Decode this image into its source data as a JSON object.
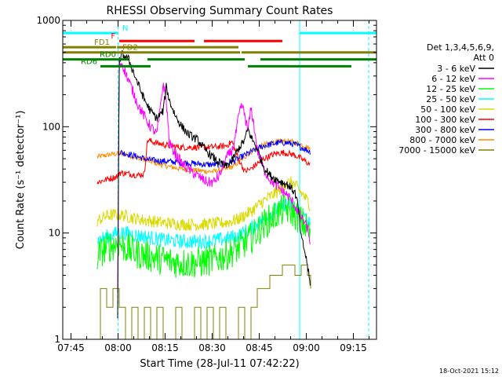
{
  "chart_data": {
    "type": "line",
    "title": "RHESSI Observing Summary Count Rates",
    "xlabel": "Start Time (28-Jul-11 07:42:22)",
    "ylabel": "Count Rate (s⁻¹ detector⁻¹)",
    "x_units": "minutes after 07:42:22",
    "xlim": [
      0,
      100
    ],
    "ylim": [
      1,
      1000
    ],
    "yscale": "log",
    "x_ticks": [
      {
        "value": 2.63,
        "label": "07:45"
      },
      {
        "value": 17.63,
        "label": "08:00"
      },
      {
        "value": 32.63,
        "label": "08:15"
      },
      {
        "value": 47.63,
        "label": "08:30"
      },
      {
        "value": 62.63,
        "label": "08:45"
      },
      {
        "value": 77.63,
        "label": "09:00"
      },
      {
        "value": 92.63,
        "label": "09:15"
      }
    ],
    "y_ticks": [
      {
        "value": 1,
        "label": "1"
      },
      {
        "value": 10,
        "label": "10"
      },
      {
        "value": 100,
        "label": "100"
      },
      {
        "value": 1000,
        "label": "1000"
      }
    ],
    "legend_title": [
      "Det 1,3,4,5,6,9,",
      "Att 0"
    ],
    "legend_position": "right",
    "date_stamp": "18-Oct-2021 15:12",
    "series": [
      {
        "name": "3 - 6 keV",
        "color": "#000000",
        "noise": 0.04,
        "points": [
          [
            17.5,
            1.5
          ],
          [
            18,
            420
          ],
          [
            19,
            480
          ],
          [
            21,
            430
          ],
          [
            23,
            300
          ],
          [
            26,
            180
          ],
          [
            28,
            140
          ],
          [
            30,
            120
          ],
          [
            32,
            140
          ],
          [
            33,
            240
          ],
          [
            34,
            175
          ],
          [
            36,
            125
          ],
          [
            38,
            100
          ],
          [
            40,
            85
          ],
          [
            43,
            75
          ],
          [
            46,
            58
          ],
          [
            49,
            48
          ],
          [
            52,
            42
          ],
          [
            54,
            48
          ],
          [
            56,
            62
          ],
          [
            58,
            75
          ],
          [
            59,
            95
          ],
          [
            60,
            80
          ],
          [
            62,
            62
          ],
          [
            64,
            42
          ],
          [
            66,
            35
          ],
          [
            68,
            32
          ],
          [
            70,
            30
          ],
          [
            72,
            28
          ],
          [
            74,
            24
          ],
          [
            75,
            18
          ],
          [
            76,
            9
          ],
          [
            77,
            7
          ],
          [
            78,
            5
          ],
          [
            79,
            3
          ]
        ]
      },
      {
        "name": "6 - 12 keV",
        "color": "#ff00ff",
        "noise": 0.05,
        "points": [
          [
            17.5,
            2.5
          ],
          [
            18,
            400
          ],
          [
            19,
            390
          ],
          [
            20,
            320
          ],
          [
            22,
            230
          ],
          [
            24,
            160
          ],
          [
            26,
            125
          ],
          [
            28,
            100
          ],
          [
            30,
            85
          ],
          [
            31,
            140
          ],
          [
            32,
            260
          ],
          [
            33,
            175
          ],
          [
            34,
            70
          ],
          [
            36,
            55
          ],
          [
            38,
            45
          ],
          [
            40,
            40
          ],
          [
            42,
            36
          ],
          [
            44,
            33
          ],
          [
            46,
            30
          ],
          [
            48,
            30
          ],
          [
            50,
            35
          ],
          [
            52,
            50
          ],
          [
            54,
            60
          ],
          [
            55,
            80
          ],
          [
            56,
            120
          ],
          [
            57,
            160
          ],
          [
            58,
            130
          ],
          [
            59,
            90
          ],
          [
            60,
            150
          ],
          [
            61,
            100
          ],
          [
            62,
            60
          ],
          [
            64,
            40
          ],
          [
            66,
            32
          ],
          [
            68,
            28
          ],
          [
            70,
            25
          ],
          [
            72,
            22
          ],
          [
            74,
            18
          ],
          [
            76,
            14
          ],
          [
            78,
            11
          ],
          [
            79,
            8
          ]
        ]
      },
      {
        "name": "12 - 25 keV",
        "color": "#00ff00",
        "noise": 0.15,
        "points": [
          [
            11,
            6
          ],
          [
            13,
            7
          ],
          [
            15,
            7.5
          ],
          [
            17.5,
            8
          ],
          [
            18,
            8
          ],
          [
            20,
            7.2
          ],
          [
            24,
            6.4
          ],
          [
            28,
            6
          ],
          [
            32,
            5.6
          ],
          [
            36,
            5.3
          ],
          [
            40,
            5.2
          ],
          [
            44,
            5.3
          ],
          [
            48,
            5.6
          ],
          [
            52,
            6.2
          ],
          [
            56,
            7.2
          ],
          [
            60,
            9
          ],
          [
            64,
            12
          ],
          [
            68,
            15
          ],
          [
            71,
            17
          ],
          [
            73,
            16
          ],
          [
            75,
            14
          ],
          [
            77,
            12
          ],
          [
            79,
            10
          ]
        ]
      },
      {
        "name": "25 - 50 keV",
        "color": "#00ffff",
        "noise": 0.07,
        "points": [
          [
            11,
            8.5
          ],
          [
            15,
            9.5
          ],
          [
            17.5,
            10
          ],
          [
            20,
            10
          ],
          [
            24,
            9.5
          ],
          [
            28,
            9
          ],
          [
            32,
            8.6
          ],
          [
            36,
            8.4
          ],
          [
            40,
            8.3
          ],
          [
            44,
            8.3
          ],
          [
            48,
            8.5
          ],
          [
            52,
            8.8
          ],
          [
            56,
            9.5
          ],
          [
            60,
            11
          ],
          [
            64,
            13.5
          ],
          [
            68,
            16.5
          ],
          [
            71,
            19
          ],
          [
            73,
            18
          ],
          [
            75,
            16
          ],
          [
            77,
            14
          ],
          [
            79,
            12
          ]
        ]
      },
      {
        "name": "50 - 100 keV",
        "color": "#dada00",
        "noise": 0.06,
        "points": [
          [
            11,
            13
          ],
          [
            14,
            14.5
          ],
          [
            17.5,
            15
          ],
          [
            20,
            14.5
          ],
          [
            24,
            13.5
          ],
          [
            28,
            13
          ],
          [
            32,
            12.5
          ],
          [
            36,
            12.2
          ],
          [
            40,
            12
          ],
          [
            44,
            12
          ],
          [
            48,
            12.2
          ],
          [
            52,
            12.5
          ],
          [
            56,
            13.5
          ],
          [
            60,
            16
          ],
          [
            64,
            20
          ],
          [
            68,
            24
          ],
          [
            71,
            29
          ],
          [
            73,
            30
          ],
          [
            75,
            26
          ],
          [
            77,
            22
          ],
          [
            79,
            18
          ]
        ]
      },
      {
        "name": "100 - 300 keV",
        "color": "#ff0000",
        "noise": 0.03,
        "points": [
          [
            11,
            30
          ],
          [
            14,
            32
          ],
          [
            17.5,
            34
          ],
          [
            18,
            37
          ],
          [
            21,
            36
          ],
          [
            24,
            35
          ],
          [
            26,
            36
          ],
          [
            27,
            75
          ],
          [
            30,
            70
          ],
          [
            34,
            66
          ],
          [
            38,
            64
          ],
          [
            42,
            64
          ],
          [
            46,
            64
          ],
          [
            50,
            65
          ],
          [
            52,
            66
          ],
          [
            54,
            72
          ],
          [
            56,
            50
          ],
          [
            58,
            38
          ],
          [
            60,
            40
          ],
          [
            62,
            45
          ],
          [
            64,
            50
          ],
          [
            66,
            53
          ],
          [
            68,
            56
          ],
          [
            70,
            57
          ],
          [
            72,
            56
          ],
          [
            74,
            54
          ],
          [
            76,
            50
          ],
          [
            78,
            46
          ],
          [
            79,
            43
          ]
        ]
      },
      {
        "name": "300 - 800 keV",
        "color": "#0000ff",
        "noise": 0.03,
        "points": [
          [
            18,
            58
          ],
          [
            21,
            55
          ],
          [
            24,
            52
          ],
          [
            26,
            50
          ],
          [
            27,
            49
          ],
          [
            30,
            48
          ],
          [
            34,
            47
          ],
          [
            38,
            46
          ],
          [
            42,
            45
          ],
          [
            46,
            44
          ],
          [
            50,
            44
          ],
          [
            52,
            45
          ],
          [
            54,
            47
          ],
          [
            56,
            50
          ],
          [
            58,
            54
          ],
          [
            60,
            58
          ],
          [
            62,
            62
          ],
          [
            64,
            66
          ],
          [
            66,
            68
          ],
          [
            68,
            70
          ],
          [
            70,
            71
          ],
          [
            72,
            70
          ],
          [
            74,
            68
          ],
          [
            76,
            64
          ],
          [
            78,
            60
          ],
          [
            79,
            58
          ]
        ]
      },
      {
        "name": "800 - 7000 keV",
        "color": "#ff8c00",
        "noise": 0.025,
        "points": [
          [
            11,
            52
          ],
          [
            14,
            54
          ],
          [
            17.5,
            56
          ],
          [
            20,
            55
          ],
          [
            22,
            53
          ],
          [
            24,
            51
          ],
          [
            27,
            48
          ],
          [
            30,
            45
          ],
          [
            34,
            42
          ],
          [
            38,
            40
          ],
          [
            42,
            39
          ],
          [
            46,
            38
          ],
          [
            48,
            38
          ],
          [
            50,
            39
          ],
          [
            52,
            40
          ],
          [
            54,
            42
          ],
          [
            56,
            46
          ],
          [
            58,
            52
          ],
          [
            60,
            58
          ],
          [
            62,
            63
          ],
          [
            64,
            67
          ],
          [
            66,
            70
          ],
          [
            68,
            72
          ],
          [
            70,
            73
          ],
          [
            72,
            73
          ],
          [
            74,
            71
          ],
          [
            76,
            68
          ],
          [
            78,
            64
          ],
          [
            79,
            61
          ]
        ]
      },
      {
        "name": "7000 - 15000 keV",
        "color": "#808000",
        "noise": 0,
        "points": [
          [
            11,
            1
          ],
          [
            12,
            3
          ],
          [
            14,
            2
          ],
          [
            16,
            3
          ],
          [
            18,
            2
          ],
          [
            20,
            1
          ],
          [
            22,
            2
          ],
          [
            24,
            1
          ],
          [
            26,
            2
          ],
          [
            28,
            1
          ],
          [
            30,
            2
          ],
          [
            32,
            1
          ],
          [
            34,
            1
          ],
          [
            36,
            2
          ],
          [
            38,
            1
          ],
          [
            40,
            1
          ],
          [
            42,
            2
          ],
          [
            44,
            1
          ],
          [
            46,
            2
          ],
          [
            48,
            1
          ],
          [
            50,
            2
          ],
          [
            52,
            1
          ],
          [
            54,
            1
          ],
          [
            56,
            2
          ],
          [
            58,
            1
          ],
          [
            60,
            2
          ],
          [
            62,
            3
          ],
          [
            64,
            3
          ],
          [
            66,
            4
          ],
          [
            68,
            4
          ],
          [
            70,
            5
          ],
          [
            72,
            5
          ],
          [
            74,
            4
          ],
          [
            76,
            5
          ],
          [
            78,
            4
          ],
          [
            79,
            3
          ]
        ]
      }
    ],
    "vlines": [
      {
        "x": 0,
        "color": "#00ffff",
        "style": "solid"
      },
      {
        "x": 17.6,
        "color": "#00ffff",
        "style": "dashed"
      },
      {
        "x": 75.5,
        "color": "#00ffff",
        "style": "solid"
      },
      {
        "x": 97.5,
        "color": "#00ffff",
        "style": "dashed"
      }
    ],
    "state_bars": [
      {
        "label": "N",
        "color": "#00ffff",
        "y": 760,
        "segments": [
          [
            0,
            17.6
          ],
          [
            75.5,
            100
          ]
        ],
        "label_x": 18.5,
        "label_side": "right"
      },
      {
        "label": "F",
        "color": "#ff0000",
        "y": 640,
        "segments": [
          [
            18,
            42
          ],
          [
            45,
            70
          ]
        ],
        "label_x": 17.3,
        "label_side": "left"
      },
      {
        "label": "FD1",
        "color": "#808000",
        "y": 560,
        "segments": [
          [
            0,
            17
          ]
        ],
        "label_x": 15.5,
        "label_side": "left"
      },
      {
        "label": "",
        "color": "#808000",
        "y": 560,
        "segments": [
          [
            17.3,
            56
          ]
        ],
        "label_x": 0,
        "label_side": "left"
      },
      {
        "label": "FD2",
        "color": "#808000",
        "y": 500,
        "segments": [
          [
            0,
            56.5
          ],
          [
            57,
            100
          ]
        ],
        "label_x": 18.5,
        "label_side": "right"
      },
      {
        "label": "RD0",
        "color": "#008000",
        "y": 430,
        "segments": [
          [
            0,
            21
          ],
          [
            27,
            58
          ],
          [
            63,
            100
          ]
        ],
        "label_x": 17.5,
        "label_side": "left"
      },
      {
        "label": "RD6",
        "color": "#008000",
        "y": 370,
        "segments": [
          [
            12,
            28
          ],
          [
            59,
            92
          ]
        ],
        "label_x": 11.5,
        "label_side": "left"
      }
    ]
  }
}
